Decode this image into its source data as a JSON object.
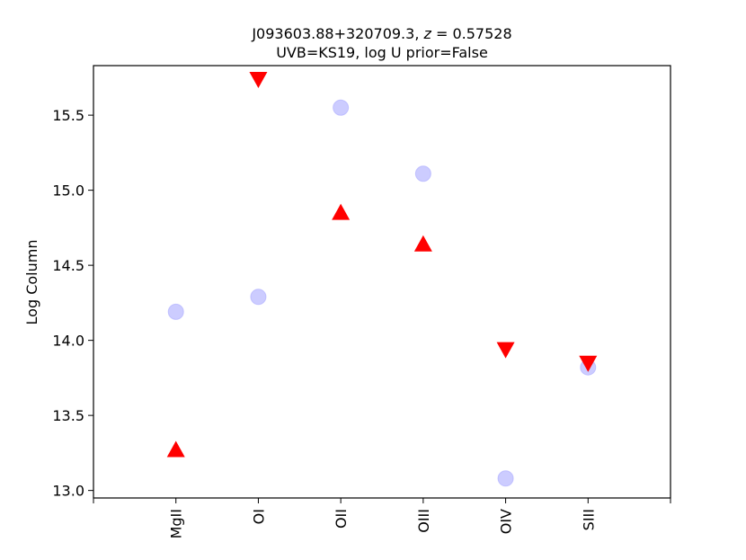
{
  "chart_data": {
    "type": "scatter",
    "title_line1": "J093603.88+320709.3, ",
    "title_z_var": "z",
    "title_z_value": " = 0.57528",
    "title_line2": "UVB=KS19, log U prior=False",
    "xlabel": "",
    "ylabel": "Log Column",
    "categories": [
      "MgII",
      "OI",
      "OII",
      "OIII",
      "OIV",
      "SIII"
    ],
    "ylim": [
      12.95,
      15.83
    ],
    "yticks": [
      "13.0",
      "13.5",
      "14.0",
      "14.5",
      "15.0",
      "15.5"
    ],
    "grid": false,
    "series": [
      {
        "marker": "circle",
        "color": "#aaaaff",
        "points": [
          {
            "x": "MgII",
            "y": 14.19
          },
          {
            "x": "OI",
            "y": 14.29
          },
          {
            "x": "OII",
            "y": 15.55
          },
          {
            "x": "OIII",
            "y": 15.11
          },
          {
            "x": "OIV",
            "y": 13.08
          },
          {
            "x": "SIII",
            "y": 13.82
          }
        ]
      },
      {
        "marker": "triangle-up",
        "color": "#ff0000",
        "points": [
          {
            "x": "MgII",
            "y": 13.27
          },
          {
            "x": "OII",
            "y": 14.85
          },
          {
            "x": "OIII",
            "y": 14.64
          }
        ]
      },
      {
        "marker": "triangle-down",
        "color": "#ff0000",
        "points": [
          {
            "x": "OI",
            "y": 15.74
          },
          {
            "x": "OIV",
            "y": 13.94
          },
          {
            "x": "SIII",
            "y": 13.85
          }
        ]
      }
    ]
  }
}
